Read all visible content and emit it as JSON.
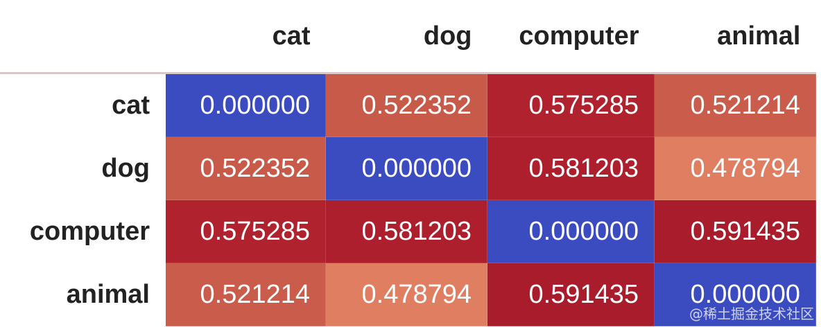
{
  "chart_data": {
    "type": "heatmap",
    "colormap": "coolwarm",
    "columns": [
      "cat",
      "dog",
      "computer",
      "animal"
    ],
    "rows": [
      "cat",
      "dog",
      "computer",
      "animal"
    ],
    "values": [
      [
        "0.000000",
        "0.522352",
        "0.575285",
        "0.521214"
      ],
      [
        "0.522352",
        "0.000000",
        "0.581203",
        "0.478794"
      ],
      [
        "0.575285",
        "0.581203",
        "0.000000",
        "0.591435"
      ],
      [
        "0.521214",
        "0.478794",
        "0.591435",
        "0.000000"
      ]
    ],
    "colors": [
      [
        "#3b4cc0",
        "#c85a4a",
        "#b0222d",
        "#c95c4b"
      ],
      [
        "#c85a4a",
        "#3b4cc0",
        "#ad1f2c",
        "#e07e62"
      ],
      [
        "#b0222d",
        "#ad1f2c",
        "#3b4cc0",
        "#a81c2b"
      ],
      [
        "#c95c4b",
        "#e07e62",
        "#a81c2b",
        "#3b4cc0"
      ]
    ]
  },
  "watermark": "@稀土掘金技术社区"
}
